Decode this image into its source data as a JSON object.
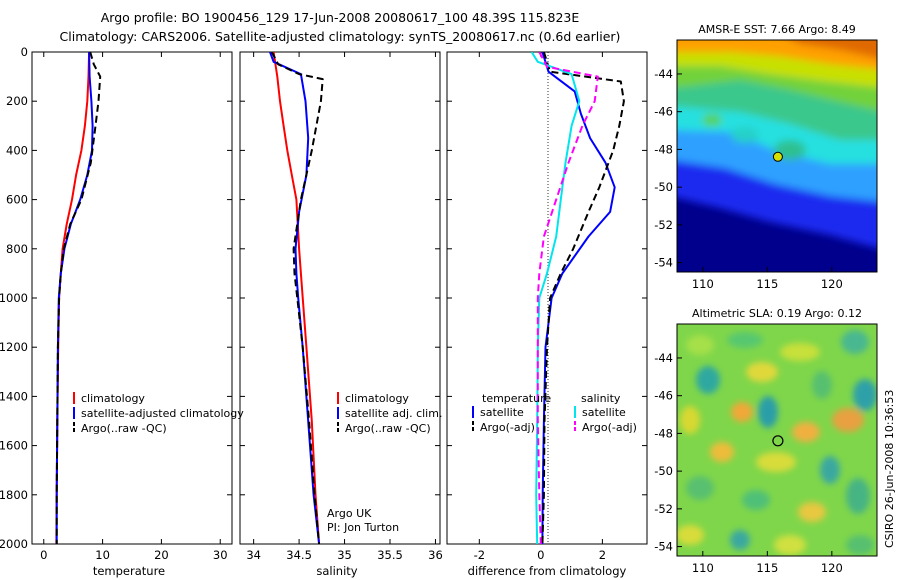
{
  "header": {
    "line1": "Argo profile: BO 1900456_129 17-Jun-2008 20080617_100 48.39S 115.823E",
    "line2": "Climatology: CARS2006. Satellite-adjusted climatology: synTS_20080617.nc (0.6d earlier)"
  },
  "side_label": "CSIRO 26-Jun-2008 10:36:53",
  "colors": {
    "climatology": "#ff0000",
    "satellite": "#0000ff",
    "argo": "#000000",
    "salinity_satellite": "#00e5ee",
    "salinity_argo": "#ff00ff",
    "zero_line": "#000000"
  },
  "chart_data": [
    {
      "type": "line",
      "panel": "temperature",
      "xlabel": "temperature",
      "ylabel": "",
      "xlim": [
        -2,
        32
      ],
      "ylim": [
        2000,
        0
      ],
      "xticks": [
        0,
        10,
        20,
        30
      ],
      "yticks": [
        0,
        200,
        400,
        600,
        800,
        1000,
        1200,
        1400,
        1600,
        1800,
        2000
      ],
      "legend": {
        "placement": "lower-right",
        "entries": [
          "climatology",
          "satellite-adjusted climatology",
          "Argo(..raw -QC)"
        ]
      },
      "series": [
        {
          "name": "climatology",
          "color": "#ff0000",
          "dash": "solid",
          "x": [
            7.7,
            7.6,
            7.4,
            7.0,
            6.4,
            5.5,
            4.8,
            3.9,
            3.2,
            2.9,
            2.6,
            2.45,
            2.3,
            2.2,
            2.15
          ],
          "y": [
            0,
            100,
            200,
            300,
            400,
            500,
            600,
            700,
            800,
            900,
            1000,
            1200,
            1500,
            1800,
            2000
          ]
        },
        {
          "name": "satellite-adjusted climatology",
          "color": "#0000ff",
          "dash": "solid",
          "x": [
            7.7,
            7.8,
            8.1,
            8.3,
            8.2,
            7.4,
            6.2,
            4.6,
            3.5,
            2.9,
            2.55,
            2.4,
            2.3,
            2.2,
            2.2
          ],
          "y": [
            0,
            100,
            200,
            300,
            400,
            500,
            600,
            700,
            800,
            900,
            1000,
            1200,
            1500,
            1800,
            2000
          ]
        },
        {
          "name": "Argo(..raw -QC)",
          "color": "#000000",
          "dash": "dashed",
          "x": [
            7.9,
            8.5,
            9.6,
            9.3,
            8.8,
            8.0,
            6.4,
            4.5,
            3.4,
            2.9,
            2.6,
            2.4,
            2.3,
            2.2,
            2.2
          ],
          "y": [
            0,
            50,
            100,
            200,
            300,
            450,
            600,
            700,
            800,
            900,
            1000,
            1200,
            1500,
            1800,
            2000
          ]
        }
      ]
    },
    {
      "type": "line",
      "panel": "salinity",
      "xlabel": "salinity",
      "ylabel": "",
      "xlim": [
        33.85,
        36.05
      ],
      "ylim": [
        2000,
        0
      ],
      "xticks": [
        34,
        34.5,
        35,
        35.5,
        36
      ],
      "xticklabels": [
        "34",
        "34.5",
        "35",
        "35.5",
        "36"
      ],
      "legend": {
        "placement": "lower-right",
        "entries": [
          "climatology",
          "satellite adj. clim.",
          "Argo(..raw -QC)"
        ]
      },
      "annotations": [
        "Argo UK",
        "PI: Jon Turton"
      ],
      "series": [
        {
          "name": "climatology",
          "color": "#ff0000",
          "dash": "solid",
          "x": [
            34.22,
            34.26,
            34.29,
            34.33,
            34.37,
            34.42,
            34.47,
            34.5,
            34.52,
            34.58,
            34.64,
            34.68,
            34.72
          ],
          "y": [
            0,
            100,
            200,
            300,
            400,
            500,
            600,
            800,
            900,
            1200,
            1500,
            1800,
            2000
          ]
        },
        {
          "name": "satellite adj. clim.",
          "color": "#0000ff",
          "dash": "solid",
          "x": [
            34.18,
            34.22,
            34.52,
            34.57,
            34.6,
            34.58,
            34.5,
            34.46,
            34.47,
            34.49,
            34.54,
            34.6,
            34.66,
            34.72
          ],
          "y": [
            0,
            40,
            90,
            200,
            350,
            500,
            650,
            800,
            900,
            1000,
            1200,
            1500,
            1800,
            2000
          ]
        },
        {
          "name": "Argo(..raw -QC)",
          "color": "#000000",
          "dash": "dashed",
          "x": [
            34.2,
            34.27,
            34.5,
            34.76,
            34.74,
            34.64,
            34.52,
            34.44,
            34.45,
            34.48,
            34.54,
            34.61,
            34.67,
            34.72
          ],
          "y": [
            0,
            50,
            90,
            110,
            200,
            400,
            600,
            800,
            900,
            1000,
            1200,
            1500,
            1800,
            2000
          ]
        }
      ]
    },
    {
      "type": "line",
      "panel": "difference",
      "xlabel": "difference from climatology",
      "ylabel": "",
      "xlim": [
        -3.05,
        3.45
      ],
      "ylim": [
        2000,
        0
      ],
      "xticks": [
        -2,
        0,
        2
      ],
      "legend": {
        "placement": "lower-right",
        "headers": [
          "temperature",
          "salinity"
        ],
        "entries": [
          "satellite",
          "Argo(-adj)",
          "satellite",
          "Argo(-adj)"
        ]
      },
      "series": [
        {
          "name": "temperature satellite",
          "color": "#0000ff",
          "dash": "solid",
          "x": [
            0.05,
            0.25,
            1.1,
            1.3,
            1.6,
            2.1,
            2.4,
            2.25,
            1.55,
            0.7,
            0.35,
            0.15,
            0.1,
            0.06,
            0.05
          ],
          "y": [
            0,
            80,
            160,
            250,
            350,
            450,
            550,
            650,
            750,
            900,
            1000,
            1200,
            1500,
            1800,
            2000
          ]
        },
        {
          "name": "temperature Argo(-adj)",
          "color": "#000000",
          "dash": "dashed",
          "x": [
            0.1,
            0.3,
            2.6,
            2.7,
            2.55,
            2.35,
            1.9,
            1.55,
            1.05,
            0.65,
            0.3,
            0.2,
            0.12,
            0.1,
            0.05
          ],
          "y": [
            0,
            80,
            120,
            200,
            300,
            400,
            550,
            650,
            800,
            900,
            1000,
            1200,
            1500,
            1800,
            2000
          ]
        },
        {
          "name": "salinity satellite",
          "color": "#00e5ee",
          "dash": "solid",
          "x": [
            -0.3,
            -0.1,
            1.0,
            1.25,
            1.0,
            0.8,
            0.65,
            0.5,
            0.2,
            -0.05,
            -0.1,
            -0.12,
            -0.15,
            -0.12
          ],
          "y": [
            0,
            40,
            90,
            200,
            300,
            450,
            600,
            750,
            900,
            1000,
            1200,
            1500,
            1800,
            2000
          ]
        },
        {
          "name": "salinity Argo(-adj)",
          "color": "#ff00ff",
          "dash": "dashed",
          "x": [
            -0.05,
            0.2,
            1.85,
            1.75,
            1.35,
            0.9,
            0.5,
            0.1,
            -0.05,
            -0.1,
            -0.1,
            -0.1,
            -0.05,
            0.0
          ],
          "y": [
            0,
            60,
            100,
            200,
            300,
            450,
            600,
            750,
            900,
            1000,
            1200,
            1500,
            1800,
            2000
          ]
        }
      ]
    },
    {
      "type": "heatmap",
      "panel": "sst-map",
      "title": "AMSR-E SST: 7.66 Argo: 8.49",
      "xlim": [
        108,
        123.5
      ],
      "ylim": [
        -54.5,
        -42.2
      ],
      "xticks": [
        110,
        115,
        120
      ],
      "yticks": [
        -44,
        -46,
        -48,
        -50,
        -52,
        -54
      ],
      "marker": {
        "lon": 115.823,
        "lat": -48.39,
        "color": "#d8e000"
      }
    },
    {
      "type": "heatmap",
      "panel": "sla-map",
      "title": "Altimetric SLA: 0.19 Argo: 0.12",
      "xlim": [
        108,
        123.5
      ],
      "ylim": [
        -54.5,
        -42.2
      ],
      "xticks": [
        110,
        115,
        120
      ],
      "yticks": [
        -44,
        -46,
        -48,
        -50,
        -52,
        -54
      ],
      "marker": {
        "lon": 115.823,
        "lat": -48.39,
        "color": "none"
      }
    }
  ]
}
